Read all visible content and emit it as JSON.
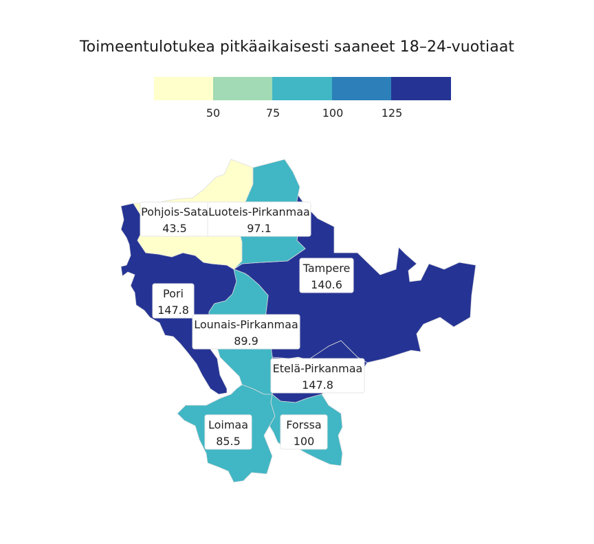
{
  "title": "Toimeentulotukea pitkäaikaisesti saaneet 18–24-vuotiaat",
  "legend": {
    "colors": [
      "#ffffcc",
      "#a1dab4",
      "#41b6c4",
      "#2c7fb8",
      "#253494"
    ],
    "ticks": [
      "50",
      "75",
      "100",
      "125"
    ]
  },
  "regions": [
    {
      "name": "Pohjois-Satakunta",
      "label": "Pohjois-Sata",
      "value": "43.5",
      "color": "#ffffcc"
    },
    {
      "name": "Luoteis-Pirkanmaa",
      "label": "Luoteis-Pirkanmaa",
      "value": "97.1",
      "color": "#41b6c4"
    },
    {
      "name": "Tampere",
      "label": "Tampere",
      "value": "140.6",
      "color": "#253494"
    },
    {
      "name": "Pori",
      "label": "Pori",
      "value": "147.8",
      "color": "#253494"
    },
    {
      "name": "Lounais-Pirkanmaa",
      "label": "Lounais-Pirkanmaa",
      "value": "89.9",
      "color": "#41b6c4"
    },
    {
      "name": "Etelä-Pirkanmaa",
      "label": "Etelä-Pirkanmaa",
      "value": "147.8",
      "color": "#253494"
    },
    {
      "name": "Loimaa",
      "label": "Loimaa",
      "value": "85.5",
      "color": "#41b6c4"
    },
    {
      "name": "Forssa",
      "label": "Forssa",
      "value": "100",
      "color": "#41b6c4"
    }
  ]
}
